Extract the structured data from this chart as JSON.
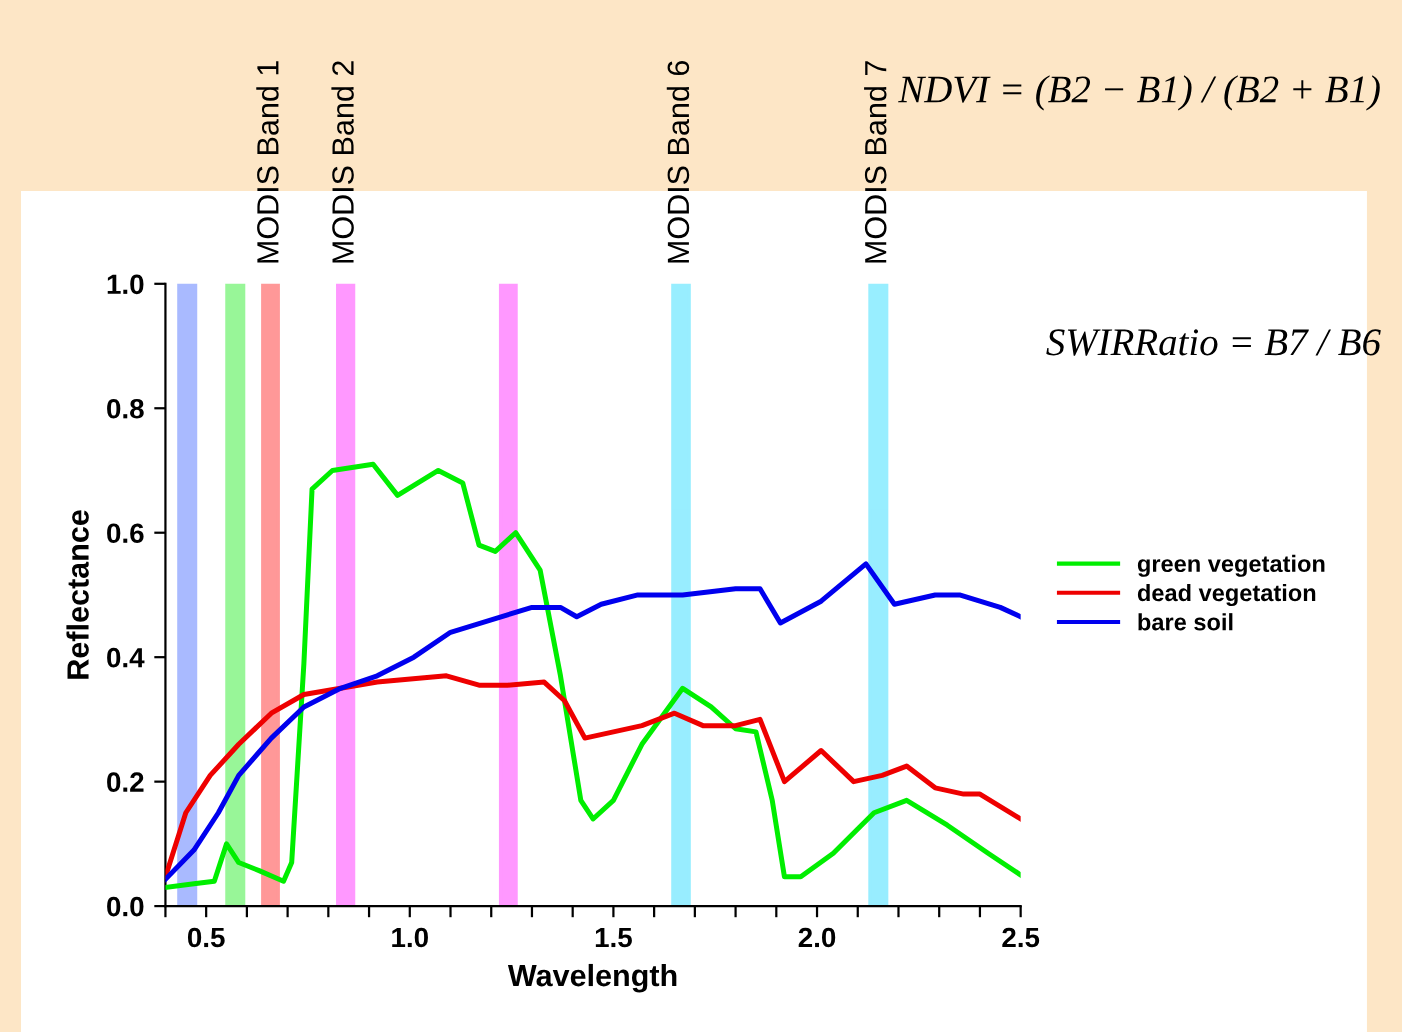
{
  "chart_data": {
    "type": "line",
    "xlabel": "Wavelength",
    "ylabel": "Reflectance",
    "xlim": [
      0.4,
      2.5
    ],
    "ylim": [
      0,
      1.0
    ],
    "xticks": [
      {
        "value": 0.4,
        "label": null
      },
      0.5,
      {
        "value": 0.6,
        "label": null
      },
      {
        "value": 0.7,
        "label": null
      },
      {
        "value": 0.8,
        "label": null
      },
      {
        "value": 0.9,
        "label": null
      },
      {
        "value": 1.0,
        "label": "1.0"
      },
      {
        "value": 1.1,
        "label": null
      },
      {
        "value": 1.2,
        "label": null
      },
      {
        "value": 1.3,
        "label": null
      },
      {
        "value": 1.4,
        "label": null
      },
      1.5,
      {
        "value": 1.6,
        "label": null
      },
      {
        "value": 1.7,
        "label": null
      },
      {
        "value": 1.8,
        "label": null
      },
      {
        "value": 1.9,
        "label": null
      },
      {
        "value": 2.0,
        "label": "2.0"
      },
      {
        "value": 2.1,
        "label": null
      },
      {
        "value": 2.2,
        "label": null
      },
      {
        "value": 2.3,
        "label": null
      },
      {
        "value": 2.4,
        "label": null
      },
      2.5
    ],
    "yticks": [
      {
        "value": 0,
        "label": "0.0"
      },
      0.2,
      0.4,
      0.6,
      0.8,
      {
        "value": 1.0,
        "label": "1.0"
      }
    ],
    "grid": false,
    "legend": "right",
    "marker": "none",
    "line_style": "solid",
    "series": [
      {
        "name": "green vegetation",
        "color": "#00ee00",
        "x": [
          0.4,
          0.47,
          0.52,
          0.55,
          0.58,
          0.63,
          0.69,
          0.71,
          0.74,
          0.76,
          0.81,
          0.91,
          0.97,
          1.07,
          1.13,
          1.17,
          1.21,
          1.26,
          1.32,
          1.37,
          1.42,
          1.45,
          1.5,
          1.57,
          1.67,
          1.74,
          1.8,
          1.85,
          1.89,
          1.92,
          1.96,
          2.04,
          2.14,
          2.22,
          2.32,
          2.42,
          2.5
        ],
        "values": [
          0.03,
          0.036,
          0.04,
          0.1,
          0.07,
          0.057,
          0.04,
          0.07,
          0.39,
          0.67,
          0.7,
          0.71,
          0.66,
          0.7,
          0.68,
          0.58,
          0.57,
          0.6,
          0.54,
          0.37,
          0.17,
          0.14,
          0.17,
          0.26,
          0.35,
          0.32,
          0.285,
          0.28,
          0.17,
          0.047,
          0.047,
          0.085,
          0.15,
          0.17,
          0.13,
          0.085,
          0.05
        ]
      },
      {
        "name": "dead vegetation",
        "color": "#ee0000",
        "x": [
          0.4,
          0.45,
          0.51,
          0.58,
          0.66,
          0.74,
          0.83,
          0.92,
          1.09,
          1.17,
          1.24,
          1.33,
          1.38,
          1.43,
          1.5,
          1.57,
          1.65,
          1.72,
          1.8,
          1.86,
          1.92,
          2.01,
          2.09,
          2.16,
          2.22,
          2.29,
          2.36,
          2.4,
          2.5
        ],
        "values": [
          0.047,
          0.15,
          0.21,
          0.26,
          0.31,
          0.34,
          0.35,
          0.36,
          0.37,
          0.355,
          0.355,
          0.36,
          0.33,
          0.27,
          0.28,
          0.29,
          0.31,
          0.29,
          0.29,
          0.3,
          0.2,
          0.25,
          0.2,
          0.21,
          0.225,
          0.19,
          0.18,
          0.18,
          0.14
        ]
      },
      {
        "name": "bare soil",
        "color": "#0000ee",
        "x": [
          0.4,
          0.47,
          0.53,
          0.58,
          0.66,
          0.74,
          0.83,
          0.92,
          1.01,
          1.1,
          1.2,
          1.3,
          1.37,
          1.41,
          1.47,
          1.56,
          1.67,
          1.8,
          1.86,
          1.91,
          2.01,
          2.12,
          2.19,
          2.29,
          2.35,
          2.45,
          2.5
        ],
        "values": [
          0.043,
          0.09,
          0.15,
          0.21,
          0.27,
          0.32,
          0.35,
          0.37,
          0.4,
          0.44,
          0.46,
          0.48,
          0.48,
          0.465,
          0.485,
          0.5,
          0.5,
          0.51,
          0.51,
          0.455,
          0.49,
          0.55,
          0.485,
          0.5,
          0.5,
          0.48,
          0.465
        ]
      }
    ],
    "bands": [
      {
        "axis": "x",
        "from": 0.433,
        "to": 0.474,
        "label": null,
        "color": "#5577ff"
      },
      {
        "axis": "x",
        "from": 0.551,
        "to": 0.592,
        "label": null,
        "color": "#33ee33"
      },
      {
        "axis": "x",
        "from": 0.639,
        "to": 0.677,
        "label": "MODIS Band 1",
        "color": "#ff3333"
      },
      {
        "axis": "x",
        "from": 0.823,
        "to": 0.862,
        "label": "MODIS Band 2",
        "color": "#ff33ff"
      },
      {
        "axis": "x",
        "from": 1.223,
        "to": 1.261,
        "label": null,
        "color": "#ff33ff"
      },
      {
        "axis": "x",
        "from": 1.646,
        "to": 1.686,
        "label": "MODIS Band 6",
        "color": "#33ddff"
      },
      {
        "axis": "x",
        "from": 2.13,
        "to": 2.171,
        "label": "MODIS Band 7",
        "color": "#33ddff"
      }
    ],
    "annotations": [
      "NDVI = (B2 − B1) / (B2 + B1)",
      "SWIRRatio = B7 / B6"
    ]
  }
}
